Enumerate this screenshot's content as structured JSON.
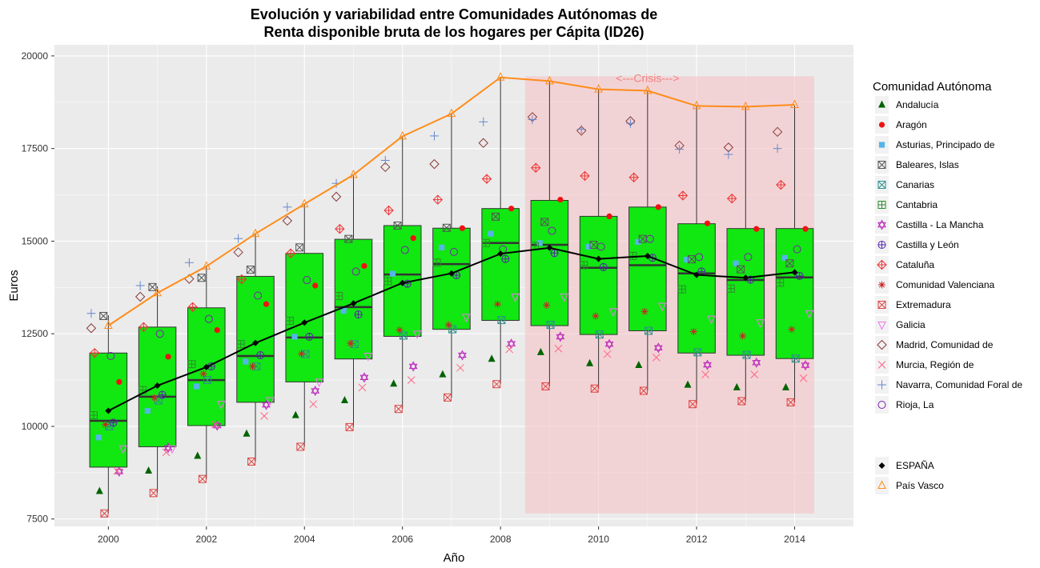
{
  "chart_data": {
    "type": "box",
    "title_line1": "Evolución y variabilidad entre Comunidades Autónomas de",
    "title_line2": "Renta disponible bruta de los hogares per Cápita (ID26)",
    "xlabel": "Año",
    "ylabel": "Euros",
    "xlim": [
      1998.9,
      2015.2
    ],
    "ylim": [
      7300,
      20300
    ],
    "x_ticks": [
      2000,
      2002,
      2004,
      2006,
      2008,
      2010,
      2012,
      2014
    ],
    "y_ticks": [
      7500,
      10000,
      12500,
      15000,
      17500,
      20000
    ],
    "grid": true,
    "colors": {
      "panel": "#ebebeb",
      "grid": "#ffffff",
      "box_fill": "#11e711",
      "crisis": "#f7c3c7",
      "crisis_text": "#f08080",
      "espana": "#000000",
      "pais_vasco": "#ff8c1a"
    },
    "crisis_shading": {
      "x_range": [
        2008.5,
        2014.4
      ],
      "y_range": [
        7650,
        19450
      ],
      "label": "<---Crisis--->",
      "label_x": 2011.0,
      "label_y": 19300
    },
    "years": [
      2000,
      2001,
      2002,
      2003,
      2004,
      2005,
      2006,
      2007,
      2008,
      2009,
      2010,
      2011,
      2012,
      2013,
      2014
    ],
    "boxes": [
      {
        "x": 2000,
        "low": 7650,
        "q1": 8900,
        "median": 10150,
        "q3": 11980,
        "high": 13000
      },
      {
        "x": 2001,
        "low": 8200,
        "q1": 9450,
        "median": 10800,
        "q3": 12680,
        "high": 13780
      },
      {
        "x": 2002,
        "low": 8580,
        "q1": 10020,
        "median": 11250,
        "q3": 13200,
        "high": 14350
      },
      {
        "x": 2003,
        "low": 9050,
        "q1": 10650,
        "median": 11900,
        "q3": 14050,
        "high": 15180
      },
      {
        "x": 2004,
        "low": 9450,
        "q1": 11200,
        "median": 12400,
        "q3": 14670,
        "high": 16000
      },
      {
        "x": 2005,
        "low": 9980,
        "q1": 11820,
        "median": 13220,
        "q3": 15050,
        "high": 16780
      },
      {
        "x": 2006,
        "low": 10480,
        "q1": 12430,
        "median": 14100,
        "q3": 15420,
        "high": 17820
      },
      {
        "x": 2007,
        "low": 10780,
        "q1": 12620,
        "median": 14380,
        "q3": 15350,
        "high": 18420
      },
      {
        "x": 2008,
        "low": 11150,
        "q1": 12860,
        "median": 14950,
        "q3": 15880,
        "high": 19420
      },
      {
        "x": 2009,
        "low": 11080,
        "q1": 12720,
        "median": 14900,
        "q3": 16100,
        "high": 19320
      },
      {
        "x": 2010,
        "low": 11020,
        "q1": 12480,
        "median": 14280,
        "q3": 15670,
        "high": 19100
      },
      {
        "x": 2011,
        "low": 10960,
        "q1": 12580,
        "median": 14350,
        "q3": 15920,
        "high": 19050
      },
      {
        "x": 2012,
        "low": 10600,
        "q1": 11980,
        "median": 14130,
        "q3": 15470,
        "high": 18640
      },
      {
        "x": 2013,
        "low": 10680,
        "q1": 11920,
        "median": 13950,
        "q3": 15340,
        "high": 18620
      },
      {
        "x": 2014,
        "low": 10650,
        "q1": 11830,
        "median": 14020,
        "q3": 15340,
        "high": 18660
      }
    ],
    "legend_title": "Comunidad Autónoma",
    "series": [
      {
        "name": "Andalucía",
        "color": "#006400",
        "shape": "triangle",
        "offset": -0.18,
        "values": [
          8250,
          8800,
          9200,
          9800,
          10300,
          10700,
          11150,
          11400,
          11820,
          12000,
          11700,
          11650,
          11120,
          11050,
          11050
        ]
      },
      {
        "name": "Aragón",
        "color": "#ee1111",
        "shape": "dot",
        "offset": 0.22,
        "values": [
          11200,
          11880,
          12600,
          13300,
          13800,
          14330,
          15080,
          15350,
          15880,
          16120,
          15670,
          15920,
          15480,
          15330,
          15330
        ]
      },
      {
        "name": "Asturias, Principado de",
        "color": "#56b4e9",
        "shape": "square",
        "offset": -0.2,
        "values": [
          9700,
          10420,
          11080,
          11750,
          12420,
          13120,
          14120,
          14830,
          15200,
          14950,
          14850,
          14980,
          14500,
          14400,
          14550
        ]
      },
      {
        "name": "Baleares, Islas",
        "color": "#555555",
        "shape": "square-x",
        "offset": -0.1,
        "values": [
          12980,
          13760,
          14010,
          14230,
          14830,
          15060,
          15420,
          15360,
          15660,
          15520,
          14900,
          15060,
          14510,
          14240,
          14400
        ]
      },
      {
        "name": "Canarias",
        "color": "#2f8f8f",
        "shape": "square-xo",
        "offset": 0.02,
        "values": [
          10000,
          10700,
          11250,
          11620,
          11950,
          12220,
          12450,
          12620,
          12870,
          12740,
          12480,
          12580,
          12000,
          11930,
          11830
        ]
      },
      {
        "name": "Cantabria",
        "color": "#2e8b2e",
        "shape": "square-plus",
        "offset": -0.3,
        "values": [
          10300,
          10980,
          11680,
          12220,
          12850,
          13520,
          13920,
          14420,
          14950,
          14870,
          14350,
          14600,
          13700,
          13720,
          13880
        ]
      },
      {
        "name": "Castilla - La Mancha",
        "color": "#bb22bb",
        "shape": "star6",
        "offset": 0.22,
        "values": [
          8780,
          9420,
          10020,
          10580,
          10960,
          11320,
          11620,
          11920,
          12230,
          12420,
          12220,
          12120,
          11660,
          11720,
          11650
        ]
      },
      {
        "name": "Castilla y León",
        "color": "#5522aa",
        "shape": "circle-plus",
        "offset": 0.1,
        "values": [
          10100,
          10850,
          11620,
          11920,
          12420,
          13020,
          13850,
          14080,
          14520,
          14680,
          14300,
          14550,
          14180,
          13960,
          14060
        ]
      },
      {
        "name": "Cataluña",
        "color": "#ee3333",
        "shape": "diamond-plus",
        "offset": -0.28,
        "values": [
          11980,
          12680,
          13220,
          13970,
          14670,
          15330,
          15830,
          16120,
          16680,
          16980,
          16760,
          16720,
          16230,
          16150,
          16520
        ]
      },
      {
        "name": "Comunidad Valenciana",
        "color": "#cc2222",
        "shape": "asterisk",
        "offset": -0.06,
        "values": [
          10050,
          10770,
          11420,
          11620,
          11960,
          12240,
          12600,
          12740,
          13300,
          13270,
          12980,
          13100,
          12560,
          12440,
          12620
        ]
      },
      {
        "name": "Extremadura",
        "color": "#dd4444",
        "shape": "square-cross",
        "offset": -0.08,
        "values": [
          7650,
          8200,
          8580,
          9050,
          9450,
          9980,
          10470,
          10780,
          11140,
          11080,
          11020,
          10960,
          10600,
          10680,
          10650
        ]
      },
      {
        "name": "Galicia",
        "color": "#ee77ee",
        "shape": "triangle-down",
        "offset": 0.3,
        "values": [
          9400,
          9400,
          10600,
          10700,
          11200,
          11900,
          12500,
          12950,
          13500,
          13500,
          13100,
          13250,
          12900,
          12800,
          13050
        ]
      },
      {
        "name": "Madrid, Comunidad de",
        "color": "#8b3a3a",
        "shape": "diamond",
        "offset": -0.35,
        "values": [
          12650,
          13500,
          13980,
          14700,
          15550,
          16200,
          17000,
          17080,
          17650,
          18350,
          17980,
          18240,
          17580,
          17530,
          17950
        ]
      },
      {
        "name": "Murcia, Región de",
        "color": "#ff6688",
        "shape": "cross",
        "offset": 0.18,
        "values": [
          8800,
          9300,
          10050,
          10280,
          10600,
          11050,
          11250,
          11580,
          12080,
          12100,
          11950,
          11860,
          11400,
          11400,
          11300
        ]
      },
      {
        "name": "Navarra, Comunidad Foral de",
        "color": "#6688cc",
        "shape": "plus",
        "offset": -0.35,
        "values": [
          13050,
          13800,
          14420,
          15070,
          15920,
          16560,
          17180,
          17840,
          18220,
          18280,
          18020,
          18180,
          17480,
          17340,
          17500
        ]
      },
      {
        "name": "Rioja, La",
        "color": "#7722aa",
        "shape": "circle",
        "offset": 0.05,
        "values": [
          11900,
          12500,
          12900,
          13530,
          13950,
          14180,
          14760,
          14710,
          14780,
          15280,
          14850,
          15060,
          14570,
          14570,
          14780
        ]
      }
    ],
    "lines": [
      {
        "name": "ESPAÑA",
        "color": "#000000",
        "shape": "diamond",
        "values": [
          10420,
          11100,
          11600,
          12250,
          12800,
          13320,
          13870,
          14130,
          14660,
          14820,
          14520,
          14600,
          14090,
          14010,
          14160
        ]
      },
      {
        "name": "País Vasco",
        "color": "#ff8c1a",
        "shape": "triangle",
        "values": [
          12720,
          13600,
          14320,
          15200,
          16000,
          16790,
          17830,
          18440,
          19420,
          19320,
          19100,
          19060,
          18650,
          18630,
          18680
        ]
      }
    ]
  }
}
